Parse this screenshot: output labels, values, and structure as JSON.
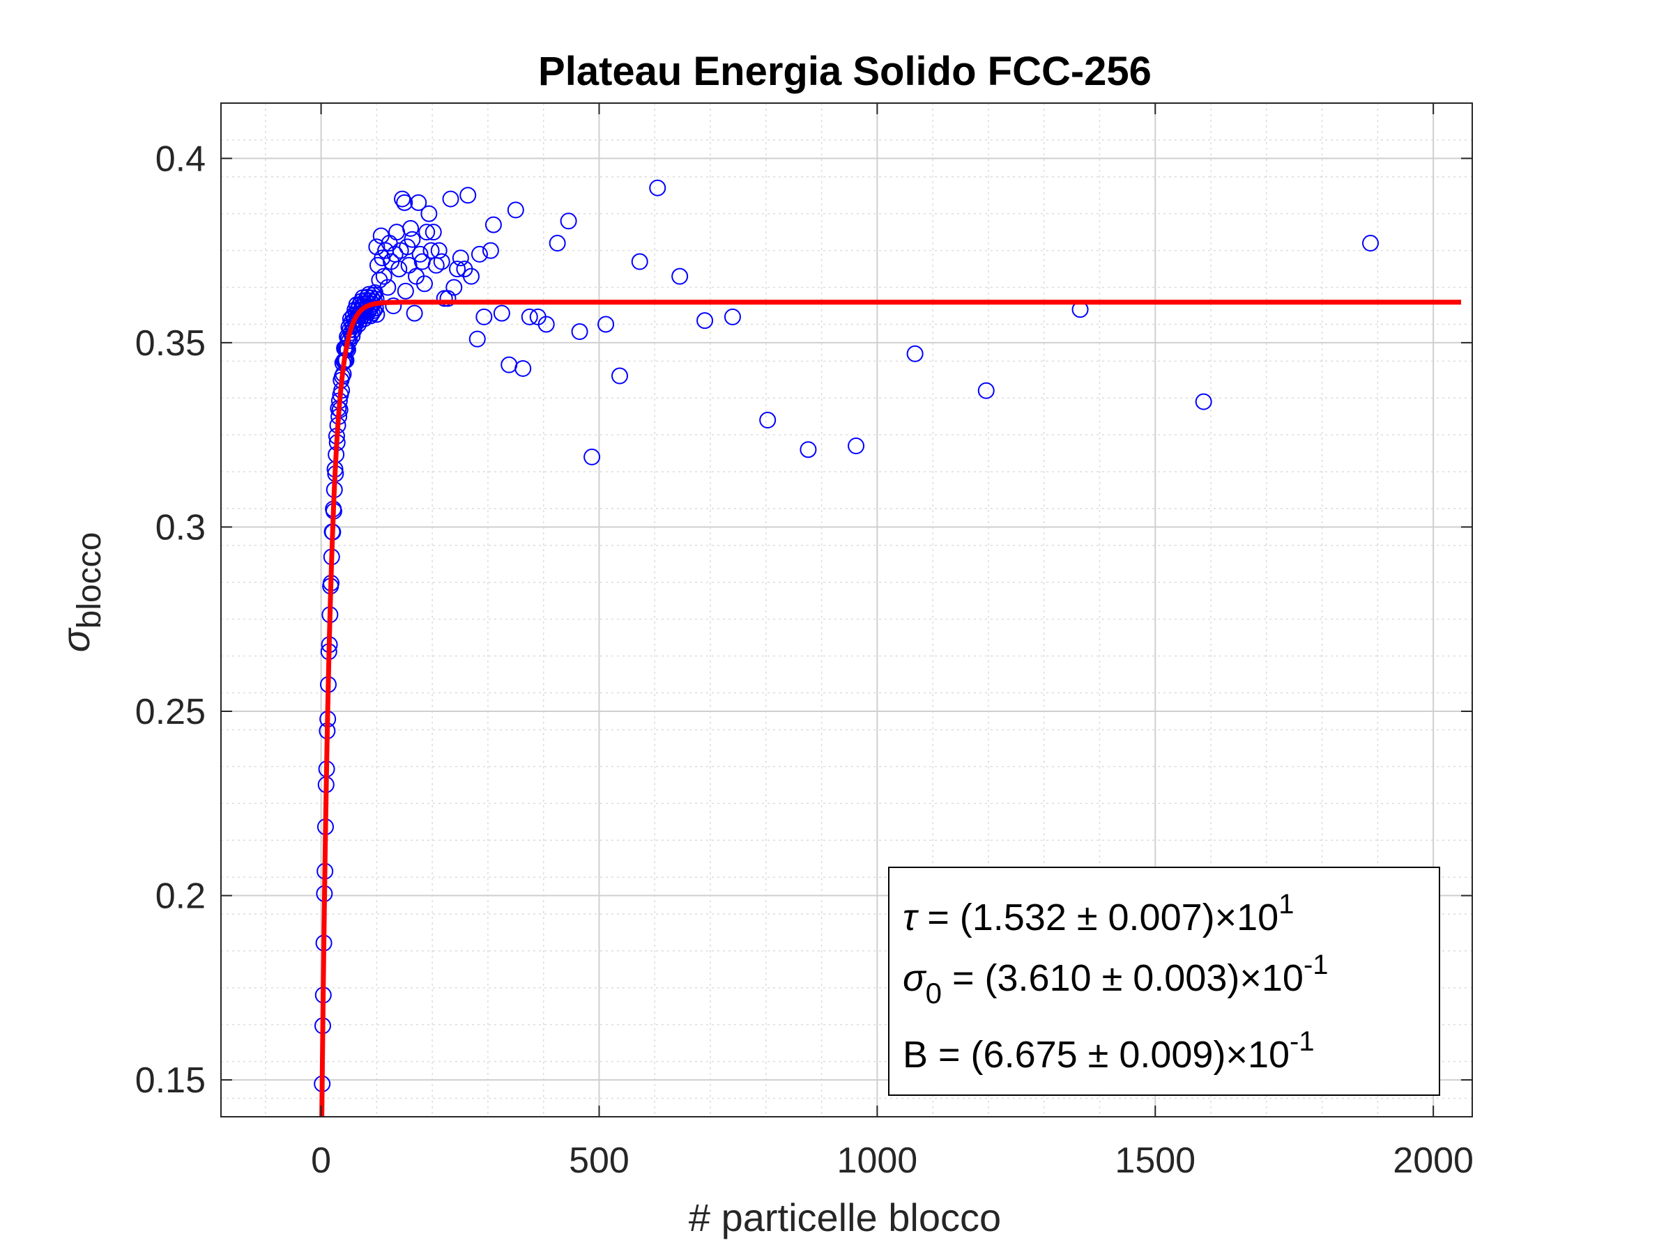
{
  "chart_data": {
    "type": "scatter",
    "title": "Plateau Energia Solido FCC-256",
    "xlabel": "# particelle blocco",
    "ylabel": {
      "symbol": "σ",
      "subscript": "blocco"
    },
    "xlim": [
      -180,
      2070
    ],
    "ylim": [
      0.14,
      0.415
    ],
    "x_ticks": [
      0,
      500,
      1000,
      1500,
      2000
    ],
    "y_ticks": [
      0.15,
      0.2,
      0.25,
      0.3,
      0.35,
      0.4
    ],
    "x_tick_labels": [
      "0",
      "500",
      "1000",
      "1500",
      "2000"
    ],
    "y_tick_labels": [
      "0.15",
      "0.2",
      "0.25",
      "0.3",
      "0.35",
      "0.4"
    ],
    "grid": true,
    "minor_grid": true,
    "colors": {
      "markers": "#0000ff",
      "fit": "#ff0000",
      "axes": "#262626",
      "grid": "#dcdcdc"
    },
    "series": [
      {
        "kind": "markers",
        "marker": "open-circle",
        "model": "saturating-exponential",
        "model_params": {
          "tau": 15.32,
          "sigma0": 0.361,
          "B": 0.6675
        },
        "dense_x_range": [
          1,
          100
        ],
        "dense_count": 100,
        "points": [
          [
            100,
            0.376
          ],
          [
            102,
            0.371
          ],
          [
            105,
            0.367
          ],
          [
            108,
            0.379
          ],
          [
            110,
            0.373
          ],
          [
            113,
            0.368
          ],
          [
            116,
            0.375
          ],
          [
            120,
            0.365
          ],
          [
            123,
            0.377
          ],
          [
            126,
            0.372
          ],
          [
            130,
            0.36
          ],
          [
            133,
            0.374
          ],
          [
            136,
            0.38
          ],
          [
            140,
            0.37
          ],
          [
            143,
            0.375
          ],
          [
            146,
            0.389
          ],
          [
            150,
            0.388
          ],
          [
            152,
            0.364
          ],
          [
            155,
            0.376
          ],
          [
            158,
            0.371
          ],
          [
            161,
            0.381
          ],
          [
            164,
            0.378
          ],
          [
            168,
            0.358
          ],
          [
            171,
            0.368
          ],
          [
            175,
            0.388
          ],
          [
            178,
            0.374
          ],
          [
            182,
            0.372
          ],
          [
            186,
            0.366
          ],
          [
            190,
            0.38
          ],
          [
            194,
            0.385
          ],
          [
            198,
            0.375
          ],
          [
            202,
            0.38
          ],
          [
            207,
            0.371
          ],
          [
            212,
            0.375
          ],
          [
            217,
            0.372
          ],
          [
            222,
            0.362
          ],
          [
            228,
            0.362
          ],
          [
            233,
            0.389
          ],
          [
            239,
            0.365
          ],
          [
            245,
            0.37
          ],
          [
            251,
            0.373
          ],
          [
            258,
            0.37
          ],
          [
            264,
            0.39
          ],
          [
            270,
            0.368
          ],
          [
            281,
            0.351
          ],
          [
            285,
            0.374
          ],
          [
            293,
            0.357
          ],
          [
            305,
            0.375
          ],
          [
            310,
            0.382
          ],
          [
            325,
            0.358
          ],
          [
            338,
            0.344
          ],
          [
            350,
            0.386
          ],
          [
            363,
            0.343
          ],
          [
            375,
            0.357
          ],
          [
            390,
            0.357
          ],
          [
            405,
            0.355
          ],
          [
            425,
            0.377
          ],
          [
            445,
            0.383
          ],
          [
            465,
            0.353
          ],
          [
            487,
            0.319
          ],
          [
            512,
            0.355
          ],
          [
            537,
            0.341
          ],
          [
            573,
            0.372
          ],
          [
            605,
            0.392
          ],
          [
            645,
            0.368
          ],
          [
            690,
            0.356
          ],
          [
            740,
            0.357
          ],
          [
            803,
            0.329
          ],
          [
            876,
            0.321
          ],
          [
            962,
            0.322
          ],
          [
            1068,
            0.347
          ],
          [
            1196,
            0.337
          ],
          [
            1365,
            0.359
          ],
          [
            1587,
            0.334
          ],
          [
            1887,
            0.377
          ]
        ]
      },
      {
        "kind": "fit-line",
        "function": "sigma0 * (1 - B * exp(-x / tau))",
        "x_range": [
          0,
          2070
        ]
      }
    ],
    "legend": {
      "placement": "bottom-right",
      "lines": [
        {
          "symbol": "τ",
          "sub": "",
          "text": " = (1.532 ± 0.007)×10",
          "exp": "1"
        },
        {
          "symbol": "σ",
          "sub": "0",
          "text": " = (3.610 ± 0.003)×10",
          "exp": "-1"
        },
        {
          "symbol": "",
          "sub": "",
          "text": "B = (6.675 ± 0.009)×10",
          "exp": "-1"
        }
      ]
    }
  }
}
